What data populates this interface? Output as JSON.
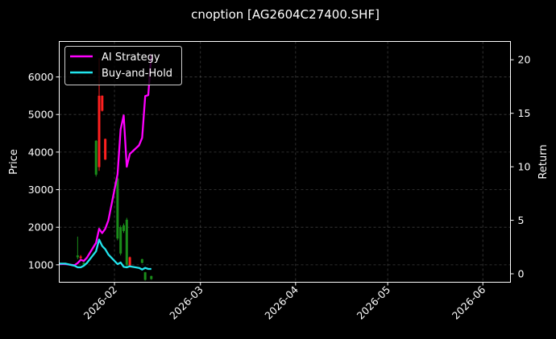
{
  "chart_data": {
    "type": "line",
    "title": "cnoption [AG2604C27400.SHF]",
    "ylabel_left": "Price",
    "ylabel_right": "Return",
    "ylim_left": [
      536,
      6944
    ],
    "ylim_right": [
      -0.79,
      21.71
    ],
    "xlim": [
      "2026-01-14",
      "2026-06-10"
    ],
    "x_ticks": [
      "2026-02",
      "2026-03",
      "2026-04",
      "2026-05",
      "2026-06"
    ],
    "x_tick_dates": [
      "2026-02-01",
      "2026-03-01",
      "2026-04-01",
      "2026-05-01",
      "2026-06-01"
    ],
    "y_ticks_left": [
      1000,
      2000,
      3000,
      4000,
      5000,
      6000
    ],
    "y_ticks_right": [
      0,
      5,
      10,
      15,
      20
    ],
    "grid": true,
    "legend_position": "top-left",
    "colors": {
      "background": "#000000",
      "ai_strategy": "#ff00ff",
      "buy_and_hold": "#22e5ee",
      "candle_up": "#ff2020",
      "candle_down": "#1a8c1a"
    },
    "series": [
      {
        "name": "AI Strategy",
        "axis": "right",
        "x": [
          "2026-01-14",
          "2026-01-15",
          "2026-01-16",
          "2026-01-19",
          "2026-01-20",
          "2026-01-21",
          "2026-01-22",
          "2026-01-23",
          "2026-01-26",
          "2026-01-27",
          "2026-01-28",
          "2026-01-29",
          "2026-01-30",
          "2026-02-02",
          "2026-02-03",
          "2026-02-04",
          "2026-02-05",
          "2026-02-06",
          "2026-02-09",
          "2026-02-10",
          "2026-02-11",
          "2026-02-12",
          "2026-02-13"
        ],
        "values": [
          0.9,
          0.9,
          0.9,
          0.8,
          1.0,
          1.3,
          1.2,
          1.5,
          2.9,
          4.2,
          3.8,
          4.2,
          5.0,
          9.3,
          13.5,
          14.8,
          10.0,
          11.2,
          12.0,
          12.7,
          16.6,
          16.7,
          20.5
        ]
      },
      {
        "name": "Buy-and-Hold",
        "axis": "right",
        "x": [
          "2026-01-14",
          "2026-01-15",
          "2026-01-16",
          "2026-01-19",
          "2026-01-20",
          "2026-01-21",
          "2026-01-22",
          "2026-01-23",
          "2026-01-26",
          "2026-01-27",
          "2026-01-28",
          "2026-01-29",
          "2026-01-30",
          "2026-02-02",
          "2026-02-03",
          "2026-02-04",
          "2026-02-05",
          "2026-02-06",
          "2026-02-09",
          "2026-02-10",
          "2026-02-11",
          "2026-02-12",
          "2026-02-13"
        ],
        "values": [
          0.95,
          0.95,
          0.95,
          0.75,
          0.6,
          0.6,
          0.75,
          1.0,
          2.1,
          3.2,
          2.6,
          2.3,
          1.8,
          0.9,
          1.05,
          0.65,
          0.6,
          0.7,
          0.55,
          0.4,
          0.55,
          0.45,
          0.45
        ]
      }
    ],
    "candles": [
      {
        "x": "2026-01-20",
        "open": 1200,
        "close": 1250,
        "high": 1750,
        "low": 1150,
        "dir": "down"
      },
      {
        "x": "2026-01-21",
        "open": 1180,
        "close": 1220,
        "high": 1260,
        "low": 1100,
        "dir": "up"
      },
      {
        "x": "2026-01-22",
        "open": 1000,
        "close": 1050,
        "high": 1100,
        "low": 980,
        "dir": "down"
      },
      {
        "x": "2026-01-26",
        "open": 3400,
        "close": 4300,
        "high": 4320,
        "low": 3350,
        "dir": "down"
      },
      {
        "x": "2026-01-27",
        "open": 5500,
        "close": 3600,
        "high": 6500,
        "low": 3500,
        "dir": "up"
      },
      {
        "x": "2026-01-28",
        "open": 5500,
        "close": 5100,
        "high": 5510,
        "low": 5080,
        "dir": "up"
      },
      {
        "x": "2026-01-29",
        "open": 4350,
        "close": 3800,
        "high": 4360,
        "low": 3790,
        "dir": "up"
      },
      {
        "x": "2026-02-02",
        "open": 3300,
        "close": 1700,
        "high": 3450,
        "low": 1650,
        "dir": "down"
      },
      {
        "x": "2026-02-03",
        "open": 2000,
        "close": 1300,
        "high": 2050,
        "low": 1250,
        "dir": "down"
      },
      {
        "x": "2026-02-04",
        "open": 2050,
        "close": 1900,
        "high": 2100,
        "low": 1850,
        "dir": "down"
      },
      {
        "x": "2026-02-05",
        "open": 2200,
        "close": 1000,
        "high": 2250,
        "low": 950,
        "dir": "down"
      },
      {
        "x": "2026-02-06",
        "open": 1200,
        "close": 950,
        "high": 1220,
        "low": 940,
        "dir": "up"
      },
      {
        "x": "2026-02-10",
        "open": 1150,
        "close": 1050,
        "high": 1160,
        "low": 1040,
        "dir": "down"
      },
      {
        "x": "2026-02-11",
        "open": 800,
        "close": 600,
        "high": 810,
        "low": 580,
        "dir": "down"
      },
      {
        "x": "2026-02-13",
        "open": 700,
        "close": 620,
        "high": 710,
        "low": 600,
        "dir": "down"
      }
    ]
  }
}
